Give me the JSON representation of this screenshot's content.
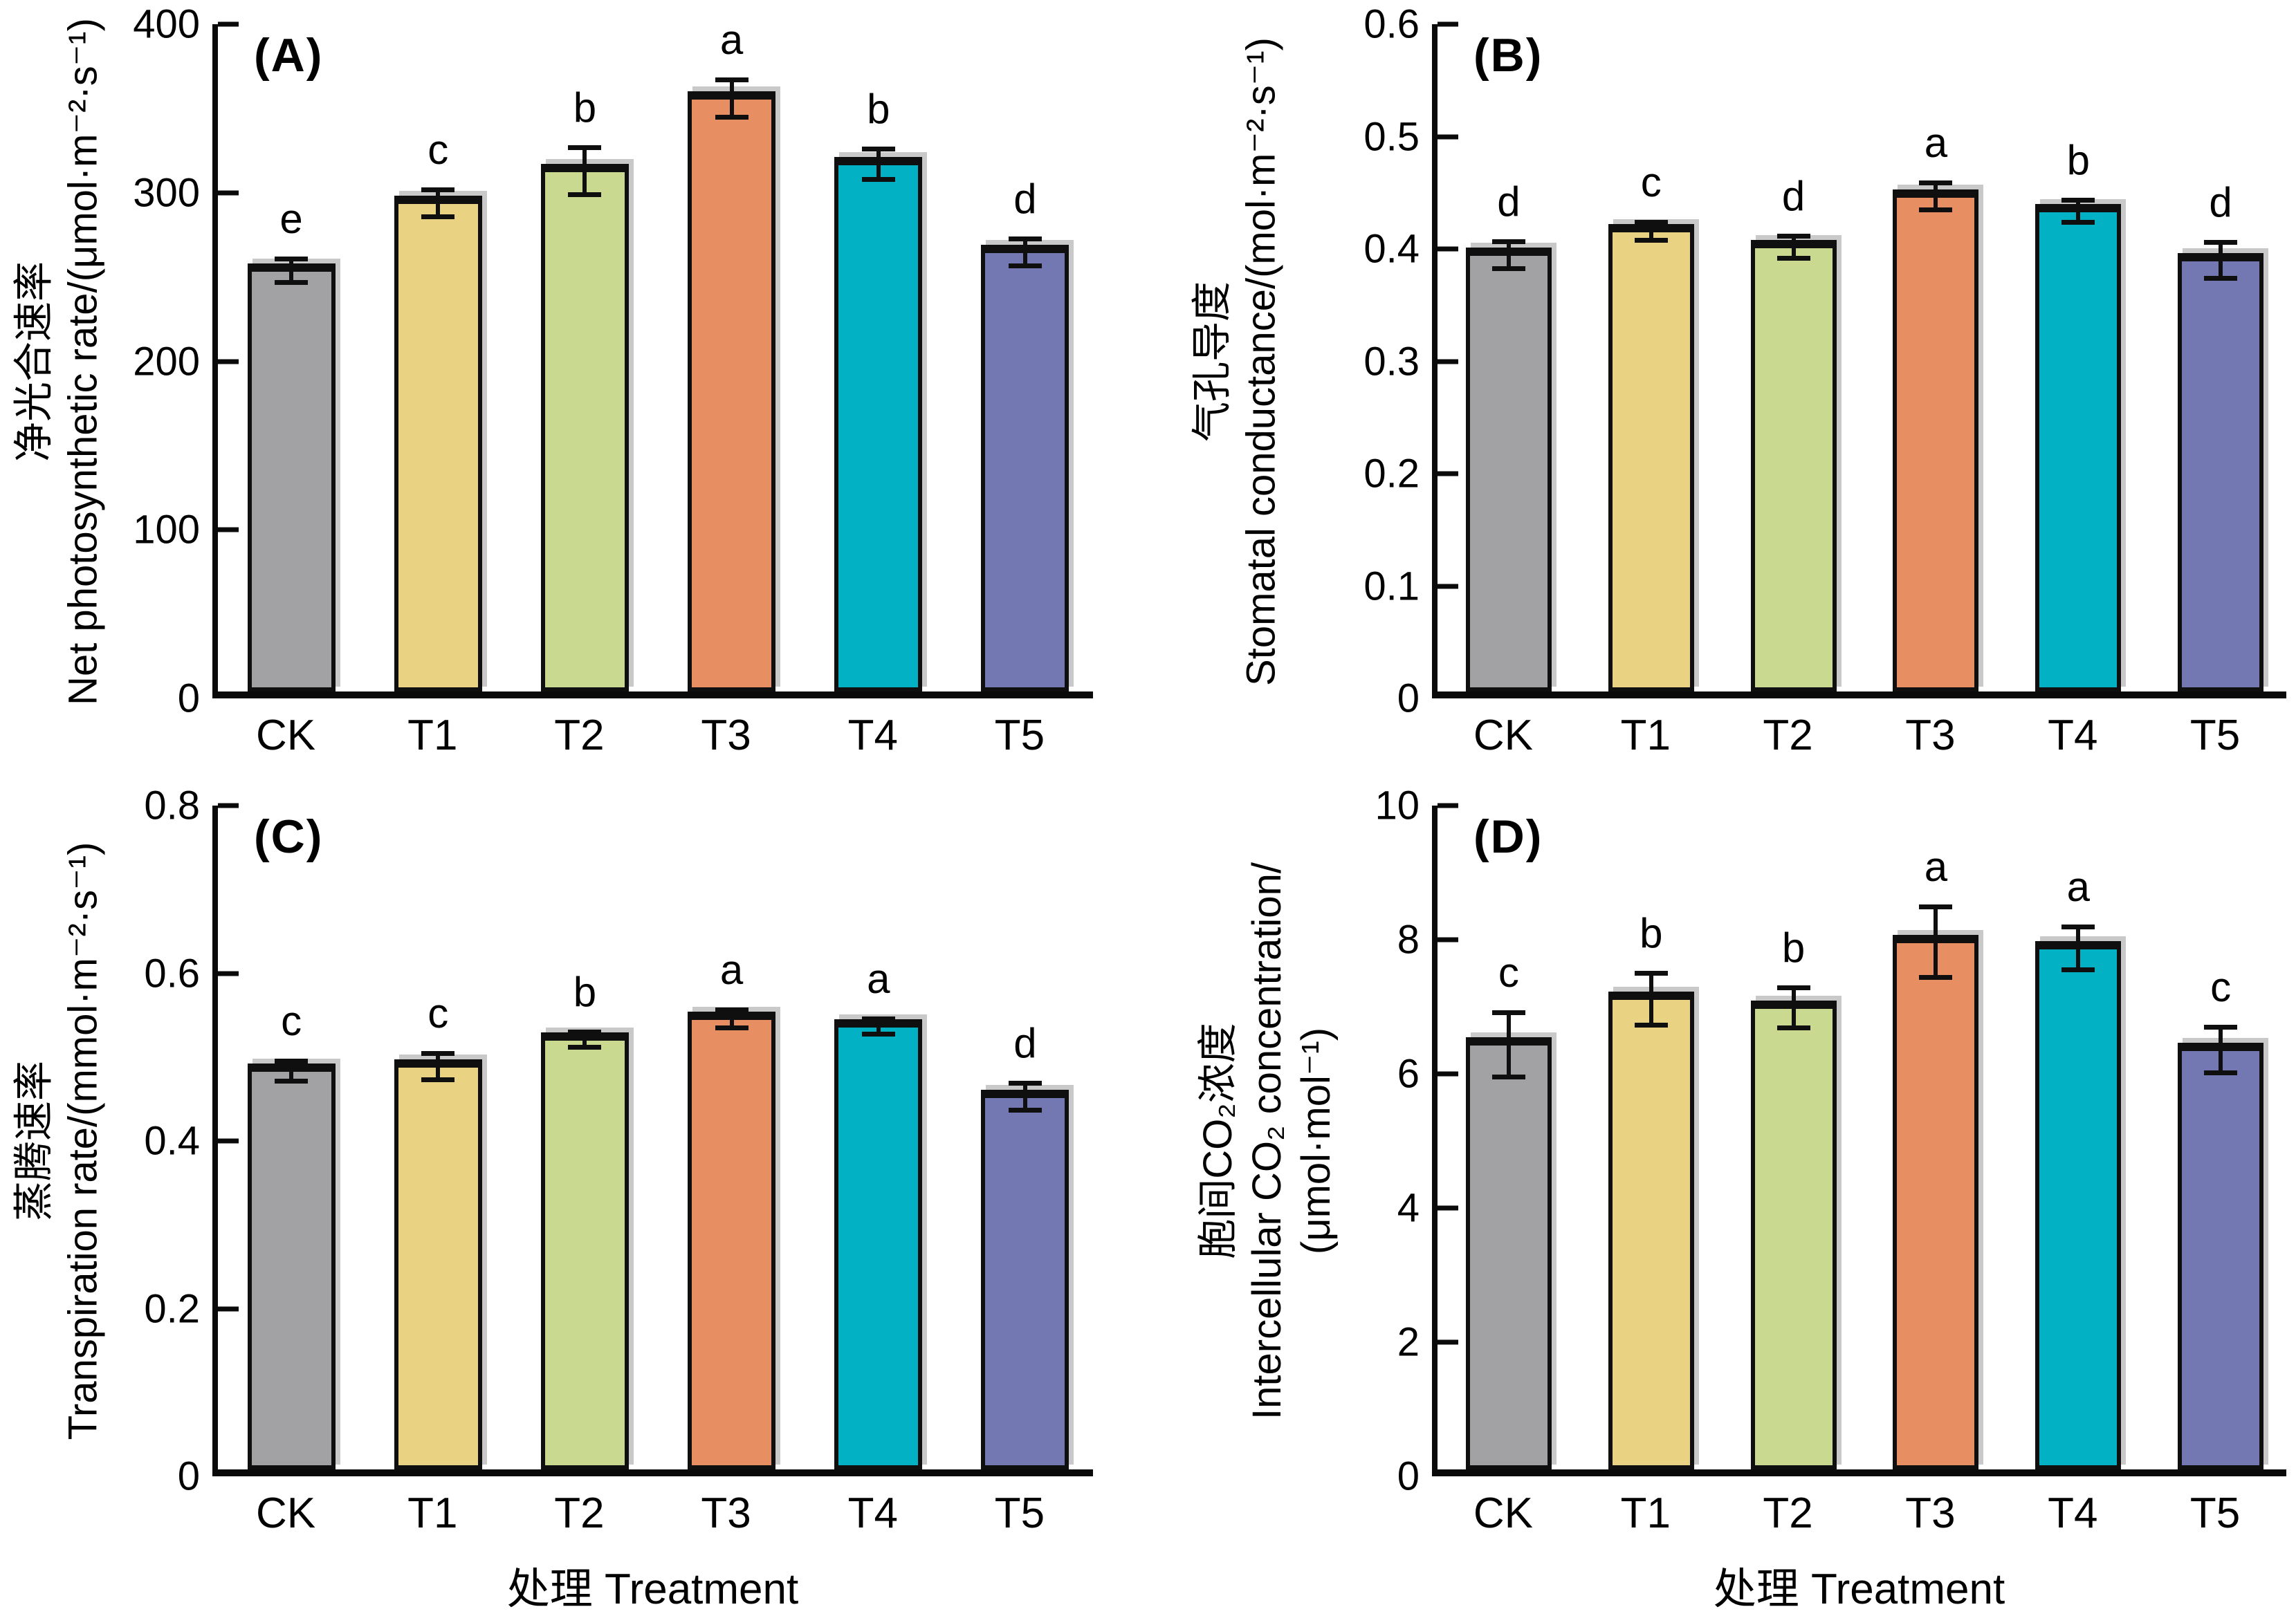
{
  "figure": {
    "description_visible_panels": [
      "(A)",
      "(B)",
      "(C)",
      "(D)"
    ],
    "bar_colors": [
      "#a2a2a4",
      "#e9d383",
      "#c9da90",
      "#e88e63",
      "#02b1c3",
      "#7478b2"
    ],
    "bar_edge_color": "#0f0f0f",
    "background_color": "#ffffff",
    "x_axis_title": "处理 Treatment"
  },
  "chart_data": [
    {
      "panel_tag": "(A)",
      "type": "bar",
      "categories": [
        "CK",
        "T1",
        "T2",
        "T3",
        "T4",
        "T5"
      ],
      "values": [
        254,
        294,
        313,
        356,
        317,
        265
      ],
      "errors": [
        7,
        8,
        14,
        11,
        9,
        8
      ],
      "sig_letters": [
        "e",
        "c",
        "b",
        "a",
        "b",
        "d"
      ],
      "ylabel_lines": [
        "净光合速率",
        "Net photosynthetic rate/(μmol·m⁻²·s⁻¹)"
      ],
      "xlabel": "",
      "ylim": [
        0,
        400
      ],
      "grid": false,
      "legend": "none",
      "yticks": [
        {
          "v": 0,
          "label": "0"
        },
        {
          "v": 100,
          "label": "100"
        },
        {
          "v": 200,
          "label": "200"
        },
        {
          "v": 300,
          "label": "300"
        },
        {
          "v": 400,
          "label": "400"
        }
      ]
    },
    {
      "panel_tag": "(B)",
      "type": "bar",
      "categories": [
        "CK",
        "T1",
        "T2",
        "T3",
        "T4",
        "T5"
      ],
      "values": [
        0.395,
        0.416,
        0.402,
        0.447,
        0.434,
        0.39
      ],
      "errors": [
        0.012,
        0.008,
        0.01,
        0.012,
        0.01,
        0.016
      ],
      "sig_letters": [
        "d",
        "c",
        "d",
        "a",
        "b",
        "d"
      ],
      "ylabel_lines": [
        "气孔导度",
        "Stomatal conductance/(mol·m⁻²·s⁻¹)"
      ],
      "xlabel": "",
      "ylim": [
        0,
        0.6
      ],
      "grid": false,
      "legend": "none",
      "yticks": [
        {
          "v": 0,
          "label": "0"
        },
        {
          "v": 0.1,
          "label": "0.1"
        },
        {
          "v": 0.2,
          "label": "0.2"
        },
        {
          "v": 0.3,
          "label": "0.3"
        },
        {
          "v": 0.4,
          "label": "0.4"
        },
        {
          "v": 0.5,
          "label": "0.5"
        },
        {
          "v": 0.6,
          "label": "0.6"
        }
      ]
    },
    {
      "panel_tag": "(C)",
      "type": "bar",
      "categories": [
        "CK",
        "T1",
        "T2",
        "T3",
        "T4",
        "T5"
      ],
      "values": [
        0.484,
        0.489,
        0.521,
        0.546,
        0.537,
        0.453
      ],
      "errors": [
        0.012,
        0.016,
        0.009,
        0.011,
        0.009,
        0.016
      ],
      "sig_letters": [
        "c",
        "c",
        "b",
        "a",
        "a",
        "d"
      ],
      "ylabel_lines": [
        "蒸腾速率",
        "Transpiration rate/(mmol·m⁻²·s⁻¹)"
      ],
      "xlabel": "处理 Treatment",
      "ylim": [
        0,
        0.8
      ],
      "grid": false,
      "legend": "none",
      "yticks": [
        {
          "v": 0,
          "label": "0"
        },
        {
          "v": 0.2,
          "label": "0.2"
        },
        {
          "v": 0.4,
          "label": "0.4"
        },
        {
          "v": 0.6,
          "label": "0.6"
        },
        {
          "v": 0.8,
          "label": "0.8"
        }
      ]
    },
    {
      "panel_tag": "(D)",
      "type": "bar",
      "categories": [
        "CK",
        "T1",
        "T2",
        "T3",
        "T4",
        "T5"
      ],
      "values": [
        6.44,
        7.12,
        6.99,
        7.97,
        7.88,
        6.36
      ],
      "errors": [
        0.48,
        0.39,
        0.3,
        0.53,
        0.32,
        0.34
      ],
      "sig_letters": [
        "c",
        "b",
        "b",
        "a",
        "a",
        "c"
      ],
      "ylabel_lines": [
        "胞间CO₂浓度",
        "Intercellular CO₂ concentration/",
        "(μmol·mol⁻¹)"
      ],
      "xlabel": "处理 Treatment",
      "ylim": [
        0,
        10
      ],
      "grid": false,
      "legend": "none",
      "yticks": [
        {
          "v": 0,
          "label": "0"
        },
        {
          "v": 2,
          "label": "2"
        },
        {
          "v": 4,
          "label": "4"
        },
        {
          "v": 6,
          "label": "6"
        },
        {
          "v": 8,
          "label": "8"
        },
        {
          "v": 10,
          "label": "10"
        }
      ]
    }
  ]
}
